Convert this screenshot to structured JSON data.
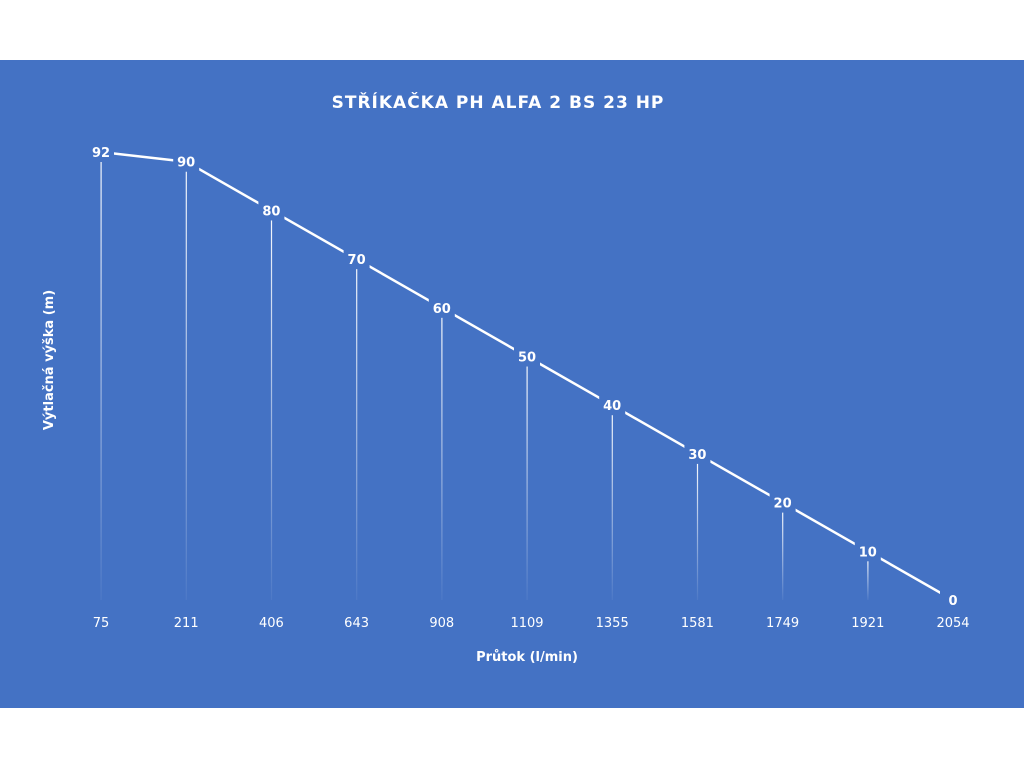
{
  "colors": {
    "page_background": "#ffffff",
    "chart_background": "#4472c4",
    "line": "#ffffff",
    "text": "#ffffff"
  },
  "chart_data": {
    "type": "line",
    "title": "STŘÍKAČKA PH ALFA 2 BS 23 HP",
    "xlabel": "Průtok (l/min)",
    "ylabel": "Výtlačná výška (m)",
    "categories": [
      "75",
      "211",
      "406",
      "643",
      "908",
      "1109",
      "1355",
      "1581",
      "1749",
      "1921",
      "2054"
    ],
    "series": [
      {
        "values": [
          92,
          90,
          80,
          70,
          60,
          50,
          40,
          30,
          20,
          10,
          0
        ]
      }
    ],
    "ylim": [
      0,
      92
    ],
    "show_data_labels": true,
    "drop_lines": true,
    "grid": false,
    "legend": "none"
  }
}
